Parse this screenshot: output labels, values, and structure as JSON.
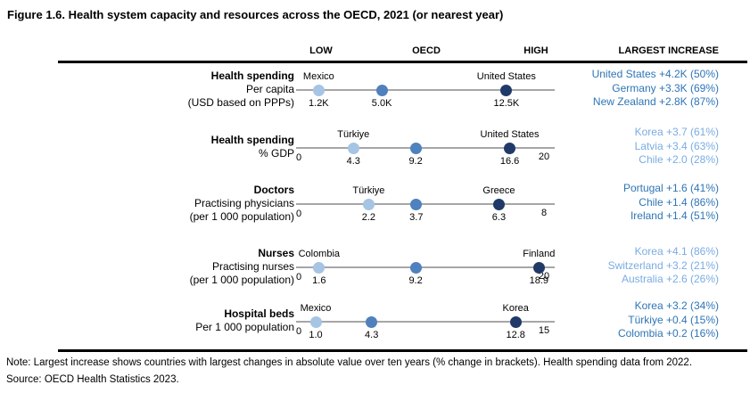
{
  "title": "Figure 1.6. Health system capacity and resources across the OECD, 2021 (or nearest year)",
  "header": {
    "low": "LOW",
    "oecd": "OECD",
    "high": "HIGH",
    "largest_increase": "LARGEST INCREASE"
  },
  "colors": {
    "low_dot": "#A6C4E4",
    "oecd_dot": "#4E81BD",
    "high_dot": "#1F3A68",
    "axis_line": "#A6A6A6",
    "increase_dark": "#2E75B6",
    "increase_light": "#7AACE2"
  },
  "chart_data": {
    "type": "scatter",
    "title": "Health system capacity and resources across the OECD, 2021 (or nearest year)",
    "legend": [
      "LOW",
      "OECD",
      "HIGH"
    ],
    "legend_position": "top",
    "rows": [
      {
        "label": [
          "Health spending",
          "Per capita",
          "(USD based on PPPs)"
        ],
        "axis": {
          "min": 0,
          "max": 15.3,
          "min_label": "",
          "max_label": ""
        },
        "points": {
          "low": {
            "country": "Mexico",
            "value": 1.2,
            "label": "1.2K"
          },
          "oecd": {
            "country": "",
            "value": 5.0,
            "label": "5.0K"
          },
          "high": {
            "country": "United States",
            "value": 12.5,
            "label": "12.5K"
          }
        },
        "increase_shade": "dark",
        "largest_increase": [
          "United States +4.2K (50%)",
          "Germany +3.3K (69%)",
          "New Zealand +2.8K (87%)"
        ]
      },
      {
        "label": [
          "Health spending",
          "% GDP"
        ],
        "axis": {
          "min": 0,
          "max": 20,
          "min_label": "0",
          "max_label": "20"
        },
        "points": {
          "low": {
            "country": "Türkiye",
            "value": 4.3,
            "label": "4.3"
          },
          "oecd": {
            "country": "",
            "value": 9.2,
            "label": "9.2"
          },
          "high": {
            "country": "United States",
            "value": 16.6,
            "label": "16.6"
          }
        },
        "increase_shade": "light",
        "largest_increase": [
          "Korea +3.7 (61%)",
          "Latvia +3.4 (63%)",
          "Chile +2.0 (28%)"
        ]
      },
      {
        "label": [
          "Doctors",
          "Practising physicians",
          "(per 1 000 population)"
        ],
        "axis": {
          "min": 0,
          "max": 8,
          "min_label": "0",
          "max_label": "8"
        },
        "points": {
          "low": {
            "country": "Türkiye",
            "value": 2.2,
            "label": "2.2"
          },
          "oecd": {
            "country": "",
            "value": 3.7,
            "label": "3.7"
          },
          "high": {
            "country": "Greece",
            "value": 6.3,
            "label": "6.3"
          }
        },
        "increase_shade": "dark",
        "largest_increase": [
          "Portugal +1.6 (41%)",
          "Chile +1.4 (86%)",
          "Ireland +1.4 (51%)"
        ]
      },
      {
        "label": [
          "Nurses",
          "Practising nurses",
          "(per 1 000 population)"
        ],
        "axis": {
          "min": 0,
          "max": 20,
          "min_label": "0",
          "max_label": "20"
        },
        "points": {
          "low": {
            "country": "Colombia",
            "value": 1.6,
            "label": "1.6"
          },
          "oecd": {
            "country": "",
            "value": 9.2,
            "label": "9.2"
          },
          "high": {
            "country": "Finland",
            "value": 18.9,
            "label": "18.9"
          }
        },
        "increase_shade": "light",
        "largest_increase": [
          "Korea +4.1 (86%)",
          "Switzerland +3.2 (21%)",
          "Australia +2.6 (26%)"
        ]
      },
      {
        "label": [
          "Hospital beds",
          "Per 1 000 population"
        ],
        "axis": {
          "min": 0,
          "max": 15,
          "min_label": "0",
          "max_label": "15"
        },
        "points": {
          "low": {
            "country": "Mexico",
            "value": 1.0,
            "label": "1.0"
          },
          "oecd": {
            "country": "",
            "value": 4.3,
            "label": "4.3"
          },
          "high": {
            "country": "Korea",
            "value": 12.8,
            "label": "12.8"
          }
        },
        "increase_shade": "dark",
        "largest_increase": [
          "Korea +3.2 (34%)",
          "Türkiye +0.4 (15%)",
          "Colombia +0.2 (16%)"
        ]
      }
    ]
  },
  "note": "Note: Largest increase shows countries with largest changes in absolute value over ten years (% change in brackets). Health spending data from 2022.",
  "source": "Source: OECD Health Statistics 2023."
}
